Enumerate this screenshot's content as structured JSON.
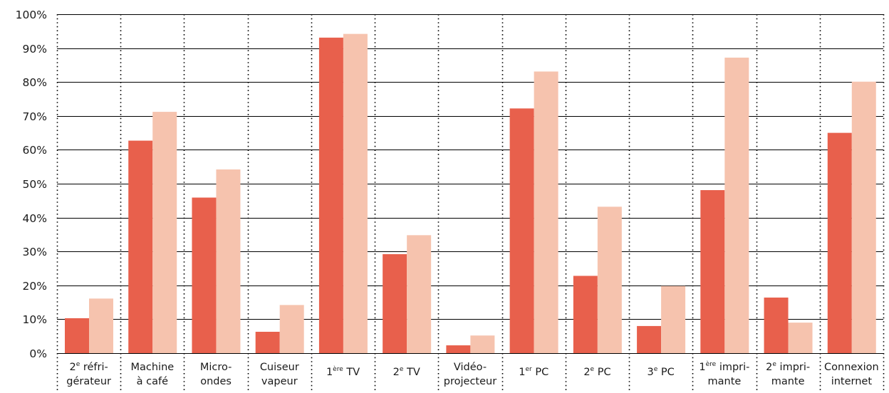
{
  "chart_data": {
    "type": "bar",
    "ylim": [
      0,
      100
    ],
    "yticks": [
      "0%",
      "10%",
      "20%",
      "30%",
      "40%",
      "50%",
      "60%",
      "70%",
      "80%",
      "90%",
      "100%"
    ],
    "grid": true,
    "categories": [
      {
        "lines": [
          [
            "2",
            "e",
            " réfri-"
          ],
          [
            "gérateur"
          ]
        ]
      },
      {
        "lines": [
          [
            "Machine"
          ],
          [
            "à café"
          ]
        ]
      },
      {
        "lines": [
          [
            "Micro-"
          ],
          [
            "ondes"
          ]
        ]
      },
      {
        "lines": [
          [
            "Cuiseur"
          ],
          [
            "vapeur"
          ]
        ]
      },
      {
        "lines": [
          [
            "1",
            "ère",
            " TV"
          ]
        ]
      },
      {
        "lines": [
          [
            "2",
            "e",
            " TV"
          ]
        ]
      },
      {
        "lines": [
          [
            "Vidéo-"
          ],
          [
            "projecteur"
          ]
        ]
      },
      {
        "lines": [
          [
            "1",
            "er",
            " PC"
          ]
        ]
      },
      {
        "lines": [
          [
            "2",
            "e",
            " PC"
          ]
        ]
      },
      {
        "lines": [
          [
            "3",
            "e",
            " PC"
          ]
        ]
      },
      {
        "lines": [
          [
            "1",
            "ère",
            " impri-"
          ],
          [
            "mante"
          ]
        ]
      },
      {
        "lines": [
          [
            "2",
            "e",
            " impri-"
          ],
          [
            "mante"
          ]
        ]
      },
      {
        "lines": [
          [
            "Connexion"
          ],
          [
            "internet"
          ]
        ]
      }
    ],
    "series": [
      {
        "color": "#e8604c",
        "values": [
          10.3,
          62.7,
          45.9,
          6.3,
          93.1,
          29.2,
          2.3,
          72.2,
          22.8,
          8.0,
          48.1,
          16.4,
          65.0
        ]
      },
      {
        "color": "#f6c3ae",
        "values": [
          16.1,
          71.2,
          54.2,
          14.2,
          94.2,
          34.8,
          5.2,
          83.1,
          43.2,
          19.8,
          87.2,
          9.0,
          80.1
        ]
      }
    ]
  }
}
